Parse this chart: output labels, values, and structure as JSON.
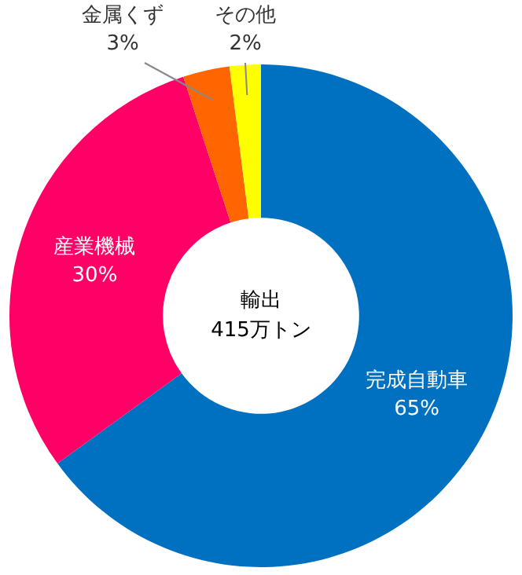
{
  "chart_data": {
    "type": "donut",
    "categories": [
      "完成自動車",
      "産業機械",
      "金属くず",
      "その他"
    ],
    "values": [
      65,
      30,
      3,
      2
    ],
    "colors": [
      "#0070c0",
      "#ff0066",
      "#ff6600",
      "#ffff00"
    ],
    "value_labels": [
      "65%",
      "30%",
      "3%",
      "2%"
    ],
    "annotations": [
      "輸出\n415万トン"
    ],
    "legend": false
  }
}
